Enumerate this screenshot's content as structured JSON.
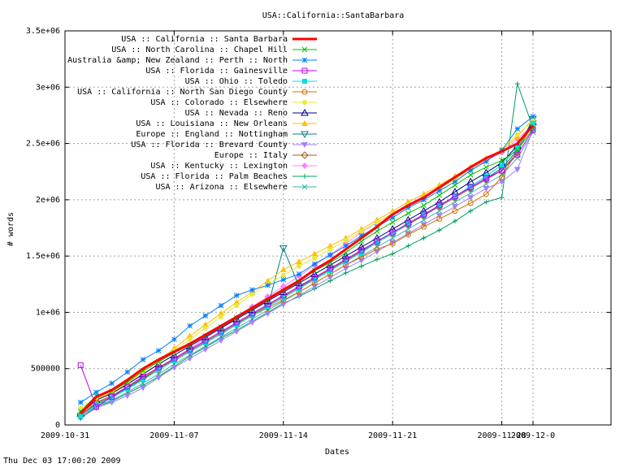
{
  "footer_timestamp": "Thu Dec 03 17:00:20 2009",
  "chart_data": {
    "type": "line",
    "title": "USA::California::SantaBarbara",
    "xlabel": "Dates",
    "ylabel": "# words",
    "xlim": [
      "2009-10-31",
      "2009-12-05"
    ],
    "ylim": [
      0,
      3500000
    ],
    "x_ticks": [
      "2009-10-31",
      "2009-11-07",
      "2009-11-14",
      "2009-11-21",
      "2009-11-28",
      "2009-12-0"
    ],
    "y_ticks": [
      {
        "value": 0,
        "label": "0"
      },
      {
        "value": 500000,
        "label": "500000"
      },
      {
        "value": 1000000,
        "label": "1e+06"
      },
      {
        "value": 1500000,
        "label": "1.5e+06"
      },
      {
        "value": 2000000,
        "label": "2e+06"
      },
      {
        "value": 2500000,
        "label": "2.5e+06"
      },
      {
        "value": 3000000,
        "label": "3e+06"
      },
      {
        "value": 3500000,
        "label": "3.5e+06"
      }
    ],
    "grid": true,
    "legend_position": "top-left",
    "x": [
      "2009-11-01",
      "2009-11-02",
      "2009-11-03",
      "2009-11-04",
      "2009-11-05",
      "2009-11-06",
      "2009-11-07",
      "2009-11-08",
      "2009-11-09",
      "2009-11-10",
      "2009-11-11",
      "2009-11-12",
      "2009-11-13",
      "2009-11-14",
      "2009-11-15",
      "2009-11-16",
      "2009-11-17",
      "2009-11-18",
      "2009-11-19",
      "2009-11-20",
      "2009-11-21",
      "2009-11-22",
      "2009-11-23",
      "2009-11-24",
      "2009-11-25",
      "2009-11-26",
      "2009-11-27",
      "2009-11-28",
      "2009-11-29",
      "2009-11-30"
    ],
    "series": [
      {
        "name": "USA :: California :: Santa Barbara",
        "color": "#ff0000",
        "marker": "none",
        "width": 3,
        "values": [
          100000,
          250000,
          310000,
          400000,
          500000,
          580000,
          650000,
          720000,
          800000,
          880000,
          960000,
          1040000,
          1120000,
          1200000,
          1280000,
          1380000,
          1460000,
          1560000,
          1660000,
          1760000,
          1870000,
          1950000,
          2020000,
          2110000,
          2200000,
          2290000,
          2370000,
          2430000,
          2500000,
          2660000
        ]
      },
      {
        "name": "USA :: North Carolina :: Chapel Hill",
        "color": "#00c000",
        "marker": "x",
        "values": [
          120000,
          260000,
          300000,
          380000,
          480000,
          560000,
          640000,
          710000,
          790000,
          870000,
          950000,
          1030000,
          1110000,
          1190000,
          1270000,
          1370000,
          1440000,
          1530000,
          1630000,
          1720000,
          1800000,
          1880000,
          1950000,
          2040000,
          2130000,
          2220000,
          2290000,
          2350000,
          2440000,
          2630000
        ]
      },
      {
        "name": "Australia &amp; New Zealand :: Perth :: North",
        "color": "#0080ff",
        "marker": "star",
        "values": [
          200000,
          290000,
          370000,
          470000,
          580000,
          660000,
          760000,
          880000,
          970000,
          1060000,
          1150000,
          1200000,
          1240000,
          1290000,
          1340000,
          1430000,
          1510000,
          1590000,
          1680000,
          1760000,
          1840000,
          1930000,
          2000000,
          2080000,
          2160000,
          2260000,
          2340000,
          2440000,
          2630000,
          2740000
        ]
      },
      {
        "name": "USA :: Florida :: Gainesville",
        "color": "#c000ff",
        "marker": "square",
        "values": [
          530000,
          160000,
          250000,
          340000,
          430000,
          510000,
          590000,
          670000,
          750000,
          830000,
          910000,
          990000,
          1070000,
          1150000,
          1230000,
          1310000,
          1390000,
          1470000,
          1550000,
          1630000,
          1710000,
          1790000,
          1870000,
          1950000,
          2030000,
          2110000,
          2190000,
          2260000,
          2400000,
          2620000
        ]
      },
      {
        "name": "USA :: Ohio :: Toledo",
        "color": "#00e0e0",
        "marker": "fsquare",
        "values": [
          80000,
          180000,
          240000,
          320000,
          400000,
          490000,
          570000,
          650000,
          730000,
          810000,
          890000,
          970000,
          1050000,
          1130000,
          1210000,
          1290000,
          1370000,
          1450000,
          1530000,
          1620000,
          1700000,
          1790000,
          1870000,
          1950000,
          2030000,
          2120000,
          2210000,
          2310000,
          2460000,
          2680000
        ]
      },
      {
        "name": "USA :: California :: North San Diego County",
        "color": "#d07000",
        "marker": "circle",
        "values": [
          90000,
          200000,
          260000,
          340000,
          420000,
          490000,
          570000,
          650000,
          730000,
          810000,
          890000,
          970000,
          1040000,
          1110000,
          1180000,
          1260000,
          1340000,
          1420000,
          1490000,
          1560000,
          1610000,
          1690000,
          1760000,
          1830000,
          1900000,
          1970000,
          2050000,
          2200000,
          2440000,
          2670000
        ]
      },
      {
        "name": "USA :: Colorado :: Elsewhere",
        "color": "#e8e840",
        "marker": "fcircle",
        "values": [
          150000,
          240000,
          300000,
          380000,
          470000,
          560000,
          660000,
          760000,
          860000,
          960000,
          1060000,
          1160000,
          1250000,
          1330000,
          1410000,
          1480000,
          1560000,
          1640000,
          1720000,
          1800000,
          1880000,
          1950000,
          2020000,
          2100000,
          2180000,
          2270000,
          2360000,
          2450000,
          2580000,
          2700000
        ]
      },
      {
        "name": "USA :: Nevada :: Reno",
        "color": "#000080",
        "marker": "triangle",
        "values": [
          100000,
          220000,
          280000,
          360000,
          450000,
          540000,
          620000,
          700000,
          780000,
          860000,
          940000,
          1020000,
          1100000,
          1180000,
          1260000,
          1340000,
          1420000,
          1500000,
          1580000,
          1660000,
          1740000,
          1820000,
          1900000,
          1980000,
          2070000,
          2160000,
          2240000,
          2330000,
          2480000,
          2690000
        ]
      },
      {
        "name": "USA :: Louisiana :: New Orleans",
        "color": "#ffc000",
        "marker": "ftriangle",
        "values": [
          110000,
          230000,
          290000,
          370000,
          470000,
          570000,
          680000,
          790000,
          890000,
          990000,
          1090000,
          1180000,
          1280000,
          1380000,
          1450000,
          1520000,
          1590000,
          1660000,
          1740000,
          1820000,
          1900000,
          1980000,
          2050000,
          2130000,
          2210000,
          2290000,
          2370000,
          2440000,
          2560000,
          2720000
        ]
      },
      {
        "name": "Europe :: England :: Nottingham",
        "color": "#008080",
        "marker": "dtriangle",
        "values": [
          80000,
          190000,
          250000,
          330000,
          410000,
          490000,
          570000,
          650000,
          730000,
          810000,
          890000,
          970000,
          1050000,
          1570000,
          1230000,
          1310000,
          1390000,
          1470000,
          1550000,
          1630000,
          1710000,
          1790000,
          1870000,
          1950000,
          2030000,
          2110000,
          2190000,
          2280000,
          2440000,
          2720000
        ]
      },
      {
        "name": "USA :: Florida :: Brevard County",
        "color": "#a080ff",
        "marker": "fdtriangle",
        "values": [
          60000,
          150000,
          200000,
          260000,
          330000,
          420000,
          510000,
          590000,
          670000,
          750000,
          830000,
          910000,
          990000,
          1070000,
          1150000,
          1230000,
          1310000,
          1390000,
          1460000,
          1540000,
          1620000,
          1700000,
          1780000,
          1860000,
          1940000,
          2020000,
          2100000,
          2160000,
          2270000,
          2620000
        ]
      },
      {
        "name": "Europe :: Italy",
        "color": "#a06020",
        "marker": "diamond",
        "values": [
          90000,
          200000,
          260000,
          340000,
          420000,
          500000,
          580000,
          660000,
          740000,
          820000,
          900000,
          980000,
          1060000,
          1140000,
          1220000,
          1300000,
          1380000,
          1460000,
          1540000,
          1620000,
          1700000,
          1780000,
          1860000,
          1940000,
          2020000,
          2100000,
          2180000,
          2260000,
          2420000,
          2700000
        ]
      },
      {
        "name": "USA :: Kentucky :: Lexington",
        "color": "#ff80ff",
        "marker": "fdiamond",
        "values": [
          70000,
          180000,
          240000,
          320000,
          410000,
          500000,
          590000,
          680000,
          770000,
          860000,
          950000,
          1050000,
          1140000,
          1230000,
          1320000,
          1420000,
          1510000,
          1610000,
          1710000,
          1800000,
          1880000,
          1960000,
          2030000,
          2110000,
          2190000,
          2270000,
          2350000,
          2420000,
          2540000,
          2660000
        ]
      },
      {
        "name": "USA :: Florida :: Palm Beaches",
        "color": "#00a060",
        "marker": "plus",
        "values": [
          60000,
          160000,
          210000,
          280000,
          350000,
          430000,
          520000,
          610000,
          690000,
          770000,
          840000,
          920000,
          1000000,
          1080000,
          1140000,
          1210000,
          1280000,
          1350000,
          1410000,
          1470000,
          1520000,
          1590000,
          1660000,
          1730000,
          1810000,
          1900000,
          1980000,
          2020000,
          3030000,
          2640000
        ]
      },
      {
        "name": "USA :: Arizona :: Elsewhere",
        "color": "#40b0b0",
        "marker": "x",
        "values": [
          70000,
          170000,
          220000,
          290000,
          370000,
          450000,
          540000,
          620000,
          700000,
          780000,
          860000,
          940000,
          1020000,
          1100000,
          1180000,
          1260000,
          1340000,
          1420000,
          1500000,
          1580000,
          1660000,
          1740000,
          1820000,
          1900000,
          1980000,
          2060000,
          2140000,
          2220000,
          2370000,
          2600000
        ]
      }
    ]
  }
}
